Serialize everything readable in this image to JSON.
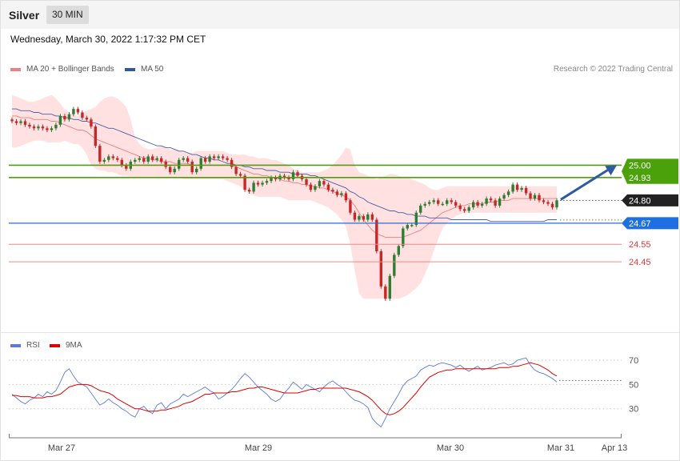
{
  "header": {
    "symbol": "Silver",
    "timeframe": "30 MIN"
  },
  "timestamp": "Wednesday, March 30, 2022 1:17:32 PM CET",
  "legend": {
    "ma20": "MA 20 + Bollinger Bands",
    "ma50": "MA 50",
    "credit": "Research © 2022 Trading Central"
  },
  "colors": {
    "up": "#2e7d32",
    "down": "#c62828",
    "resistance": "#4aa10a",
    "support": "#1f6fe0",
    "target": "#e03a3a",
    "bands": "#ffdcdc",
    "ma20": "#e98080",
    "ma50": "#4a5fa6",
    "rsi": "#5b7bd5",
    "rsi_ma": "#e00000"
  },
  "chart_data": [
    {
      "type": "candlestick",
      "title": "Silver",
      "timeframe": "30 MIN",
      "xlabel": "",
      "ylabel": "",
      "x_ticks": [
        "Mar 27",
        "Mar 29",
        "Mar 30",
        "Mar 31",
        "Apr 13"
      ],
      "ylim": [
        24.05,
        25.48
      ],
      "last_price": 24.8,
      "levels": [
        {
          "value": 25.0,
          "label": "25.00",
          "type": "resistance"
        },
        {
          "value": 24.93,
          "label": "24.93",
          "type": "resistance"
        },
        {
          "value": 24.8,
          "label": "24.80",
          "type": "last"
        },
        {
          "value": 24.67,
          "label": "24.67",
          "type": "support"
        },
        {
          "value": 24.55,
          "label": "24.55",
          "type": "target"
        },
        {
          "value": 24.45,
          "label": "24.45",
          "type": "target"
        }
      ],
      "close": [
        25.25,
        25.24,
        25.25,
        25.23,
        25.22,
        25.21,
        25.22,
        25.21,
        25.2,
        25.21,
        25.23,
        25.28,
        25.26,
        25.29,
        25.32,
        25.3,
        25.27,
        25.26,
        25.22,
        25.11,
        25.02,
        25.03,
        25.05,
        25.04,
        25.03,
        25.0,
        24.98,
        25.02,
        25.03,
        25.04,
        25.02,
        25.05,
        25.03,
        25.04,
        25.02,
        24.99,
        24.96,
        24.98,
        25.03,
        25.04,
        25.02,
        24.96,
        24.98,
        25.04,
        25.02,
        25.05,
        25.04,
        25.05,
        25.04,
        25.03,
        24.99,
        24.95,
        24.94,
        24.86,
        24.85,
        24.9,
        24.89,
        24.9,
        24.91,
        24.93,
        24.92,
        24.94,
        24.93,
        24.92,
        24.96,
        24.94,
        24.92,
        24.89,
        24.86,
        24.88,
        24.91,
        24.89,
        24.86,
        24.85,
        24.83,
        24.84,
        24.8,
        24.73,
        24.69,
        24.71,
        24.69,
        24.72,
        24.69,
        24.51,
        24.31,
        24.24,
        24.37,
        24.49,
        24.54,
        24.64,
        24.66,
        24.66,
        24.73,
        24.77,
        24.78,
        24.79,
        24.8,
        24.78,
        24.78,
        24.8,
        24.79,
        24.77,
        24.75,
        24.74,
        24.76,
        24.79,
        24.77,
        24.78,
        24.81,
        24.8,
        24.77,
        24.81,
        24.83,
        24.85,
        24.89,
        24.86,
        24.87,
        24.84,
        24.81,
        24.83,
        24.8,
        24.79,
        24.78,
        24.76,
        24.8
      ],
      "bollinger": {
        "upper": [
          25.4,
          25.39,
          25.38,
          25.37,
          25.36,
          25.36,
          25.37,
          25.38,
          25.39,
          25.4,
          25.38,
          25.35,
          25.32,
          25.3,
          25.29,
          25.28,
          25.3,
          25.31,
          25.32,
          25.33,
          25.36,
          25.38,
          25.39,
          25.39,
          25.38,
          25.36,
          25.33,
          25.26,
          25.16,
          25.12,
          25.1,
          25.09,
          25.09,
          25.1,
          25.11,
          25.1,
          25.09,
          25.09,
          25.08,
          25.08,
          25.07,
          25.07,
          25.08,
          25.08,
          25.08,
          25.08,
          25.08,
          25.08,
          25.08,
          25.07,
          25.06,
          25.06,
          25.06,
          25.06,
          25.05,
          25.05,
          25.04,
          25.04,
          25.04,
          25.03,
          25.03,
          25.02,
          25.01,
          25.0,
          24.98,
          24.97,
          24.96,
          24.96,
          24.96,
          24.96,
          24.96,
          24.97,
          24.98,
          25.0,
          25.03,
          25.06,
          25.1,
          25.09,
          25.0,
          24.96,
          24.95,
          24.94,
          24.93,
          24.92,
          24.93,
          24.94,
          24.95,
          24.95,
          24.94,
          24.93,
          24.93,
          24.92,
          24.91,
          24.9,
          24.89,
          24.87,
          24.86,
          24.86,
          24.87,
          24.88,
          24.88,
          24.88,
          24.88,
          24.88,
          24.88,
          24.88,
          24.88,
          24.88,
          24.88,
          24.88,
          24.88,
          24.88,
          24.88,
          24.88,
          24.88,
          24.88,
          24.88,
          24.88,
          24.88,
          24.88,
          24.88,
          24.88,
          24.88,
          24.88,
          24.88
        ],
        "lower": [
          25.1,
          25.1,
          25.11,
          25.12,
          25.13,
          25.14,
          25.14,
          25.14,
          25.13,
          25.13,
          25.13,
          25.13,
          25.14,
          25.13,
          25.12,
          25.12,
          25.1,
          25.06,
          25.0,
          24.98,
          24.97,
          24.97,
          24.96,
          24.96,
          24.95,
          24.94,
          24.94,
          24.93,
          24.93,
          24.93,
          24.93,
          24.93,
          24.93,
          24.93,
          24.93,
          24.93,
          24.93,
          24.93,
          24.93,
          24.92,
          24.92,
          24.92,
          24.92,
          24.92,
          24.92,
          24.92,
          24.92,
          24.92,
          24.92,
          24.91,
          24.9,
          24.89,
          24.88,
          24.86,
          24.84,
          24.83,
          24.82,
          24.82,
          24.82,
          24.82,
          24.82,
          24.82,
          24.81,
          24.8,
          24.8,
          24.8,
          24.8,
          24.8,
          24.8,
          24.79,
          24.78,
          24.77,
          24.76,
          24.74,
          24.72,
          24.69,
          24.65,
          24.55,
          24.4,
          24.27,
          24.24,
          24.24,
          24.24,
          24.24,
          24.24,
          24.24,
          24.24,
          24.24,
          24.24,
          24.25,
          24.26,
          24.28,
          24.3,
          24.33,
          24.38,
          24.44,
          24.51,
          24.58,
          24.64,
          24.67,
          24.69,
          24.71,
          24.72,
          24.73,
          24.73,
          24.73,
          24.73,
          24.73,
          24.73,
          24.73,
          24.73,
          24.73,
          24.73,
          24.73,
          24.73,
          24.73,
          24.73,
          24.73,
          24.73,
          24.73,
          24.73,
          24.73,
          24.73,
          24.73,
          24.73
        ]
      },
      "ma20": [
        25.28,
        25.28,
        25.27,
        25.27,
        25.27,
        25.26,
        25.26,
        25.26,
        25.26,
        25.25,
        25.25,
        25.24,
        25.23,
        25.22,
        25.21,
        25.2,
        25.2,
        25.19,
        25.17,
        25.15,
        25.14,
        25.13,
        25.12,
        25.11,
        25.1,
        25.09,
        25.08,
        25.07,
        25.06,
        25.05,
        25.04,
        25.04,
        25.03,
        25.03,
        25.02,
        25.02,
        25.02,
        25.01,
        25.01,
        25.01,
        25.01,
        25.0,
        25.0,
        25.0,
        25.0,
        25.0,
        25.0,
        25.0,
        25.0,
        25.0,
        25.0,
        24.99,
        24.98,
        24.97,
        24.96,
        24.95,
        24.95,
        24.94,
        24.94,
        24.93,
        24.93,
        24.92,
        24.91,
        24.91,
        24.9,
        24.9,
        24.89,
        24.89,
        24.88,
        24.88,
        24.87,
        24.87,
        24.86,
        24.85,
        24.84,
        24.83,
        24.82,
        24.8,
        24.77,
        24.73,
        24.69,
        24.66,
        24.63,
        24.61,
        24.6,
        24.59,
        24.59,
        24.59,
        24.59,
        24.59,
        24.6,
        24.61,
        24.62,
        24.63,
        24.65,
        24.67,
        24.69,
        24.71,
        24.73,
        24.74,
        24.75,
        24.76,
        24.77,
        24.77,
        24.78,
        24.78,
        24.78,
        24.78,
        24.79,
        24.79,
        24.79,
        24.8,
        24.8,
        24.8,
        24.81,
        24.81,
        24.81,
        24.81,
        24.81,
        24.81,
        24.81,
        24.81,
        24.81,
        24.81,
        24.81
      ],
      "ma50": [
        25.32,
        25.32,
        25.31,
        25.31,
        25.31,
        25.3,
        25.3,
        25.29,
        25.29,
        25.29,
        25.28,
        25.28,
        25.27,
        25.27,
        25.26,
        25.26,
        25.25,
        25.25,
        25.24,
        25.24,
        25.23,
        25.22,
        25.21,
        25.21,
        25.2,
        25.19,
        25.18,
        25.17,
        25.16,
        25.15,
        25.14,
        25.13,
        25.12,
        25.11,
        25.11,
        25.1,
        25.1,
        25.09,
        25.08,
        25.08,
        25.07,
        25.06,
        25.06,
        25.05,
        25.04,
        25.04,
        25.03,
        25.03,
        25.02,
        25.01,
        25.01,
        25.0,
        25.0,
        24.99,
        24.99,
        24.98,
        24.98,
        24.98,
        24.97,
        24.97,
        24.97,
        24.96,
        24.96,
        24.96,
        24.95,
        24.95,
        24.95,
        24.95,
        24.94,
        24.94,
        24.93,
        24.92,
        24.91,
        24.9,
        24.89,
        24.88,
        24.87,
        24.85,
        24.84,
        24.82,
        24.81,
        24.79,
        24.78,
        24.77,
        24.76,
        24.75,
        24.74,
        24.74,
        24.73,
        24.73,
        24.72,
        24.72,
        24.71,
        24.71,
        24.71,
        24.7,
        24.7,
        24.7,
        24.7,
        24.7,
        24.69,
        24.69,
        24.69,
        24.69,
        24.69,
        24.69,
        24.69,
        24.69,
        24.69,
        24.68,
        24.68,
        24.68,
        24.68,
        24.68,
        24.68,
        24.68,
        24.68,
        24.68,
        24.68,
        24.68,
        24.68,
        24.68,
        24.69,
        24.69,
        24.69
      ]
    },
    {
      "type": "line",
      "title": "",
      "ylabel": "",
      "y_ticks": [
        70,
        50,
        30
      ],
      "ylim": [
        10,
        80
      ],
      "series": [
        {
          "name": "RSI",
          "values": [
            42,
            39,
            36,
            34,
            37,
            39,
            42,
            40,
            44,
            42,
            45,
            52,
            60,
            63,
            57,
            52,
            50,
            48,
            43,
            38,
            33,
            35,
            38,
            35,
            33,
            30,
            28,
            25,
            23,
            30,
            32,
            28,
            26,
            33,
            35,
            30,
            34,
            36,
            38,
            42,
            40,
            42,
            44,
            46,
            48,
            45,
            43,
            38,
            40,
            43,
            46,
            50,
            55,
            59,
            56,
            52,
            48,
            45,
            42,
            38,
            36,
            38,
            43,
            47,
            52,
            49,
            46,
            50,
            48,
            46,
            44,
            48,
            51,
            53,
            50,
            48,
            44,
            40,
            37,
            36,
            34,
            31,
            22,
            18,
            15,
            22,
            30,
            36,
            42,
            49,
            53,
            55,
            57,
            62,
            64,
            66,
            65,
            67,
            68,
            67,
            66,
            64,
            66,
            63,
            61,
            63,
            65,
            62,
            63,
            64,
            66,
            67,
            68,
            66,
            67,
            70,
            71,
            72,
            66,
            62,
            60,
            59,
            57,
            55,
            52
          ]
        },
        {
          "name": "9MA",
          "values": [
            41,
            41,
            40,
            40,
            40,
            39,
            39,
            39,
            40,
            40,
            41,
            42,
            45,
            48,
            49,
            50,
            50,
            50,
            49,
            47,
            45,
            44,
            43,
            41,
            38,
            36,
            34,
            32,
            30,
            30,
            29,
            28,
            28,
            28,
            29,
            29,
            30,
            31,
            32,
            34,
            35,
            36,
            38,
            40,
            42,
            42,
            43,
            43,
            43,
            43,
            44,
            44,
            45,
            46,
            47,
            47,
            48,
            48,
            47,
            46,
            45,
            44,
            43,
            43,
            43,
            43,
            44,
            45,
            46,
            46,
            47,
            47,
            47,
            47,
            47,
            47,
            47,
            46,
            45,
            44,
            42,
            40,
            37,
            33,
            29,
            26,
            25,
            26,
            28,
            31,
            35,
            39,
            43,
            48,
            52,
            56,
            58,
            60,
            61,
            62,
            62,
            63,
            63,
            63,
            63,
            63,
            63,
            63,
            63,
            63,
            63,
            64,
            64,
            64,
            65,
            65,
            66,
            67,
            68,
            67,
            66,
            64,
            62,
            59,
            57
          ]
        }
      ]
    }
  ]
}
